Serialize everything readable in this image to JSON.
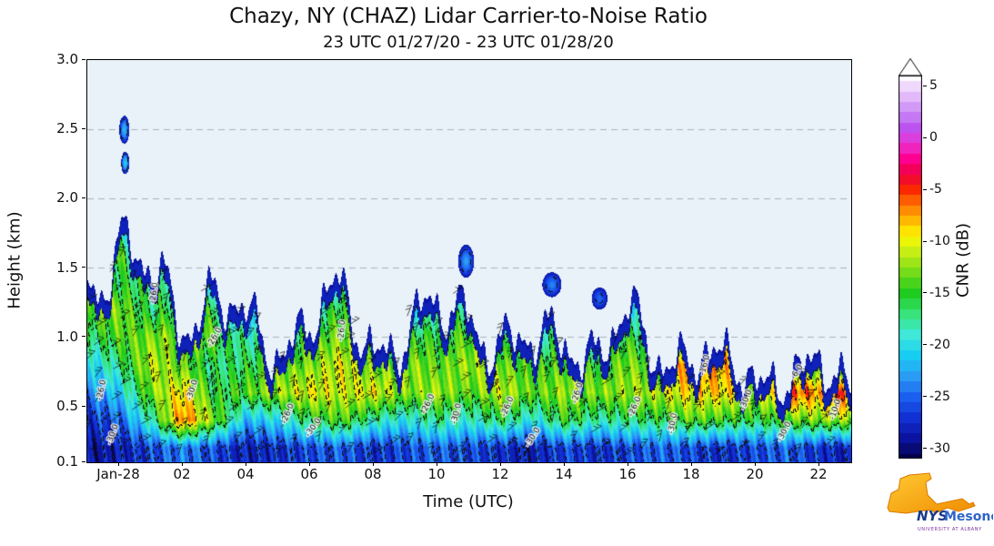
{
  "colorbar": {
    "label": "CNR (dB)",
    "vmin": -31,
    "vmax": 6,
    "over_arrow": true,
    "ticks": [
      {
        "value": 5,
        "label": "5"
      },
      {
        "value": 0,
        "label": "0"
      },
      {
        "value": -5,
        "label": "-5"
      },
      {
        "value": -10,
        "label": "-10"
      },
      {
        "value": -15,
        "label": "-15"
      },
      {
        "value": -20,
        "label": "-20"
      },
      {
        "value": -25,
        "label": "-25"
      },
      {
        "value": -30,
        "label": "-30"
      }
    ]
  },
  "axes": {
    "x_range_hours": [
      -1,
      23
    ],
    "y_range_km": [
      0.1,
      3.0
    ],
    "plot_background": "#e8f2f8",
    "grid_heights_km": [
      0.5,
      1.0,
      1.5,
      2.0,
      2.5
    ],
    "x_ticks": [
      {
        "hour": 0,
        "label": "Jan-28"
      },
      {
        "hour": 2,
        "label": "02"
      },
      {
        "hour": 4,
        "label": "04"
      },
      {
        "hour": 6,
        "label": "06"
      },
      {
        "hour": 8,
        "label": "08"
      },
      {
        "hour": 10,
        "label": "10"
      },
      {
        "hour": 12,
        "label": "12"
      },
      {
        "hour": 14,
        "label": "14"
      },
      {
        "hour": 16,
        "label": "16"
      },
      {
        "hour": 18,
        "label": "18"
      },
      {
        "hour": 20,
        "label": "20"
      },
      {
        "hour": 22,
        "label": "22"
      }
    ],
    "y_ticks": [
      {
        "km": 3.0,
        "label": "3.0"
      },
      {
        "km": 2.5,
        "label": "2.5"
      },
      {
        "km": 2.0,
        "label": "2.0"
      },
      {
        "km": 1.5,
        "label": "1.5"
      },
      {
        "km": 1.0,
        "label": "1.0"
      },
      {
        "km": 0.5,
        "label": "0.5"
      },
      {
        "km": 0.1,
        "label": "0.1"
      }
    ]
  },
  "colormap_stops": [
    [
      -31,
      "#04004c"
    ],
    [
      -29,
      "#0b13a0"
    ],
    [
      -27,
      "#1131d4"
    ],
    [
      -25,
      "#1b5ff0"
    ],
    [
      -23,
      "#2b9cf4"
    ],
    [
      -21,
      "#18cdf2"
    ],
    [
      -19,
      "#3fe8d8"
    ],
    [
      -17,
      "#37e37a"
    ],
    [
      -15,
      "#1ecb1e"
    ],
    [
      -13,
      "#74dc18"
    ],
    [
      -11,
      "#c6ee14"
    ],
    [
      -9.5,
      "#fdf800"
    ],
    [
      -8,
      "#ffb800"
    ],
    [
      -6.5,
      "#ff7600"
    ],
    [
      -5,
      "#fb2800"
    ],
    [
      -3.5,
      "#ee0040"
    ],
    [
      -2,
      "#ff0090"
    ],
    [
      -0.5,
      "#e935d4"
    ],
    [
      1,
      "#bc53ee"
    ],
    [
      2.5,
      "#c98af5"
    ],
    [
      4,
      "#e3b9fa"
    ],
    [
      5.5,
      "#f6e8fd"
    ],
    [
      6,
      "#fdfbff"
    ]
  ],
  "chart_data": {
    "type": "heatmap",
    "title": "Chazy, NY (CHAZ) Lidar Carrier-to-Noise Ratio",
    "subtitle": "23 UTC 01/27/20 - 23 UTC 01/28/20",
    "xlabel": "Time (UTC)",
    "ylabel": "Height (km)",
    "x_hours": [
      -1,
      0,
      1,
      2,
      3,
      4,
      5,
      6,
      7,
      8,
      9,
      10,
      11,
      12,
      13,
      14,
      15,
      16,
      17,
      18,
      19,
      20,
      21,
      22,
      23
    ],
    "y_km": [
      0.2,
      0.4,
      0.6,
      0.8,
      1.0,
      1.2,
      1.4,
      1.6,
      1.8,
      2.0,
      2.2,
      2.4,
      2.6
    ],
    "cnr_db": [
      [
        -29,
        -27,
        -24,
        -21,
        -17,
        -13,
        -12,
        -17,
        -22,
        -27,
        null,
        null,
        null
      ],
      [
        -28,
        -25,
        -21,
        -17,
        -14,
        -13,
        -16,
        -14,
        -20,
        -26,
        null,
        null,
        null
      ],
      [
        -26,
        -18,
        -13,
        -11,
        -13,
        -17,
        -16,
        -22,
        -27,
        null,
        null,
        null,
        null
      ],
      [
        -24,
        -6,
        -9,
        -14,
        -12,
        -14,
        -17,
        -21,
        -27,
        null,
        null,
        null,
        null
      ],
      [
        -26,
        -13,
        -16,
        -17,
        -14,
        -16,
        -20,
        -27,
        null,
        null,
        null,
        null,
        null
      ],
      [
        -28,
        -22,
        -14,
        -16,
        -18,
        -24,
        null,
        null,
        null,
        null,
        null,
        null,
        null
      ],
      [
        -27,
        -20,
        -12,
        -14,
        -17,
        -22,
        null,
        null,
        null,
        null,
        null,
        null,
        null
      ],
      [
        -26,
        -16,
        -10,
        -13,
        -15,
        -18,
        -24,
        null,
        null,
        null,
        null,
        null,
        null
      ],
      [
        -25,
        -14,
        -11,
        -10,
        -13,
        -15,
        -19,
        -24,
        null,
        null,
        null,
        null,
        null
      ],
      [
        -27,
        -18,
        -10,
        -14,
        -18,
        -25,
        null,
        null,
        null,
        null,
        null,
        null,
        null
      ],
      [
        -26,
        -20,
        -13,
        -12,
        -16,
        -22,
        null,
        null,
        null,
        null,
        null,
        null,
        null
      ],
      [
        -25,
        -17,
        -12,
        -14,
        -15,
        -18,
        -26,
        null,
        null,
        null,
        null,
        null,
        null
      ],
      [
        -26,
        -19,
        -14,
        -12,
        -14,
        -16,
        -20,
        null,
        null,
        null,
        null,
        null,
        null
      ],
      [
        -27,
        -16,
        -11,
        -13,
        -17,
        -23,
        null,
        null,
        null,
        null,
        null,
        null,
        null
      ],
      [
        -28,
        -20,
        -14,
        -15,
        -19,
        null,
        null,
        null,
        null,
        null,
        null,
        null,
        null
      ],
      [
        -26,
        -15,
        -12,
        -14,
        -16,
        -20,
        null,
        null,
        null,
        null,
        null,
        null,
        null
      ],
      [
        -27,
        -18,
        -13,
        -15,
        -18,
        null,
        null,
        null,
        null,
        null,
        null,
        null,
        null
      ],
      [
        -26,
        -17,
        -12,
        -13,
        -15,
        -19,
        null,
        null,
        null,
        null,
        null,
        null,
        null
      ],
      [
        -25,
        -16,
        -11,
        -14,
        -18,
        null,
        null,
        null,
        null,
        null,
        null,
        null,
        null
      ],
      [
        -26,
        -14,
        -9,
        -5,
        -16,
        null,
        null,
        null,
        null,
        null,
        null,
        null,
        null
      ],
      [
        -27,
        -15,
        -9,
        -8,
        null,
        null,
        null,
        null,
        null,
        null,
        null,
        null,
        null
      ],
      [
        -26,
        -16,
        -12,
        -14,
        null,
        null,
        null,
        null,
        null,
        null,
        null,
        null,
        null
      ],
      [
        -25,
        -14,
        -5,
        -12,
        null,
        null,
        null,
        null,
        null,
        null,
        null,
        null,
        null
      ],
      [
        -27,
        -13,
        -7,
        -15,
        null,
        null,
        null,
        null,
        null,
        null,
        null,
        null,
        null
      ],
      [
        -28,
        -12,
        -4,
        -18,
        null,
        null,
        null,
        null,
        null,
        null,
        null,
        null,
        null
      ]
    ],
    "echo_top_km": [
      2.0,
      1.95,
      1.75,
      1.55,
      1.6,
      1.3,
      1.2,
      1.45,
      1.5,
      1.2,
      1.3,
      1.4,
      1.55,
      1.2,
      1.1,
      1.35,
      1.1,
      1.35,
      1.1,
      1.15,
      0.95,
      0.9,
      0.95,
      0.9,
      0.85
    ],
    "detached_blobs": [
      {
        "t": 0.15,
        "h": 2.5,
        "rt": 0.16,
        "rh": 0.1,
        "cnr": -22
      },
      {
        "t": 0.18,
        "h": 2.26,
        "rt": 0.13,
        "rh": 0.08,
        "cnr": -21
      },
      {
        "t": 10.9,
        "h": 1.55,
        "rt": 0.25,
        "rh": 0.12,
        "cnr": -23
      },
      {
        "t": 13.6,
        "h": 1.38,
        "rt": 0.3,
        "rh": 0.09,
        "cnr": -24
      },
      {
        "t": 15.1,
        "h": 1.28,
        "rt": 0.25,
        "rh": 0.08,
        "cnr": -25
      }
    ],
    "contour_levels": [
      -30,
      -26,
      -16,
      -10,
      -6
    ],
    "contour_labels": [
      {
        "t": -0.55,
        "h": 0.62,
        "text": "-26.0",
        "rot": 78
      },
      {
        "t": -0.2,
        "h": 0.3,
        "text": "-30.0",
        "rot": 70
      },
      {
        "t": 1.1,
        "h": 1.32,
        "text": "-26.0",
        "rot": 82
      },
      {
        "t": 2.3,
        "h": 0.62,
        "text": "-30.0",
        "rot": 72
      },
      {
        "t": 3.0,
        "h": 1.0,
        "text": "-26.0",
        "rot": 60
      },
      {
        "t": 5.3,
        "h": 0.45,
        "text": "-26.0",
        "rot": 68
      },
      {
        "t": 6.1,
        "h": 0.35,
        "text": "-30.0",
        "rot": 55
      },
      {
        "t": 7.0,
        "h": 1.05,
        "text": "-26.0",
        "rot": 84
      },
      {
        "t": 9.7,
        "h": 0.52,
        "text": "-26.0",
        "rot": 64
      },
      {
        "t": 10.6,
        "h": 0.45,
        "text": "-30.0",
        "rot": 76
      },
      {
        "t": 12.2,
        "h": 0.5,
        "text": "-26.0",
        "rot": 68
      },
      {
        "t": 13.0,
        "h": 0.28,
        "text": "-30.0",
        "rot": 58
      },
      {
        "t": 14.4,
        "h": 0.6,
        "text": "-26.0",
        "rot": 74
      },
      {
        "t": 16.2,
        "h": 0.5,
        "text": "-26.0",
        "rot": 66
      },
      {
        "t": 17.4,
        "h": 0.38,
        "text": "-30.0",
        "rot": 80
      },
      {
        "t": 18.4,
        "h": 0.8,
        "text": "-16.0",
        "rot": 76
      },
      {
        "t": 19.7,
        "h": 0.55,
        "text": "-30.0",
        "rot": 70
      },
      {
        "t": 20.9,
        "h": 0.32,
        "text": "-30.0",
        "rot": 62
      },
      {
        "t": 21.3,
        "h": 0.75,
        "text": "-6.0",
        "rot": 58
      },
      {
        "t": 22.5,
        "h": 0.48,
        "text": "-10.0",
        "rot": 72
      }
    ],
    "wind_barbs_overlay": true
  },
  "logo": {
    "name_primary": "NYS",
    "name_secondary": "Mesonet",
    "subtitle": "UNIVERSITY AT ALBANY"
  }
}
